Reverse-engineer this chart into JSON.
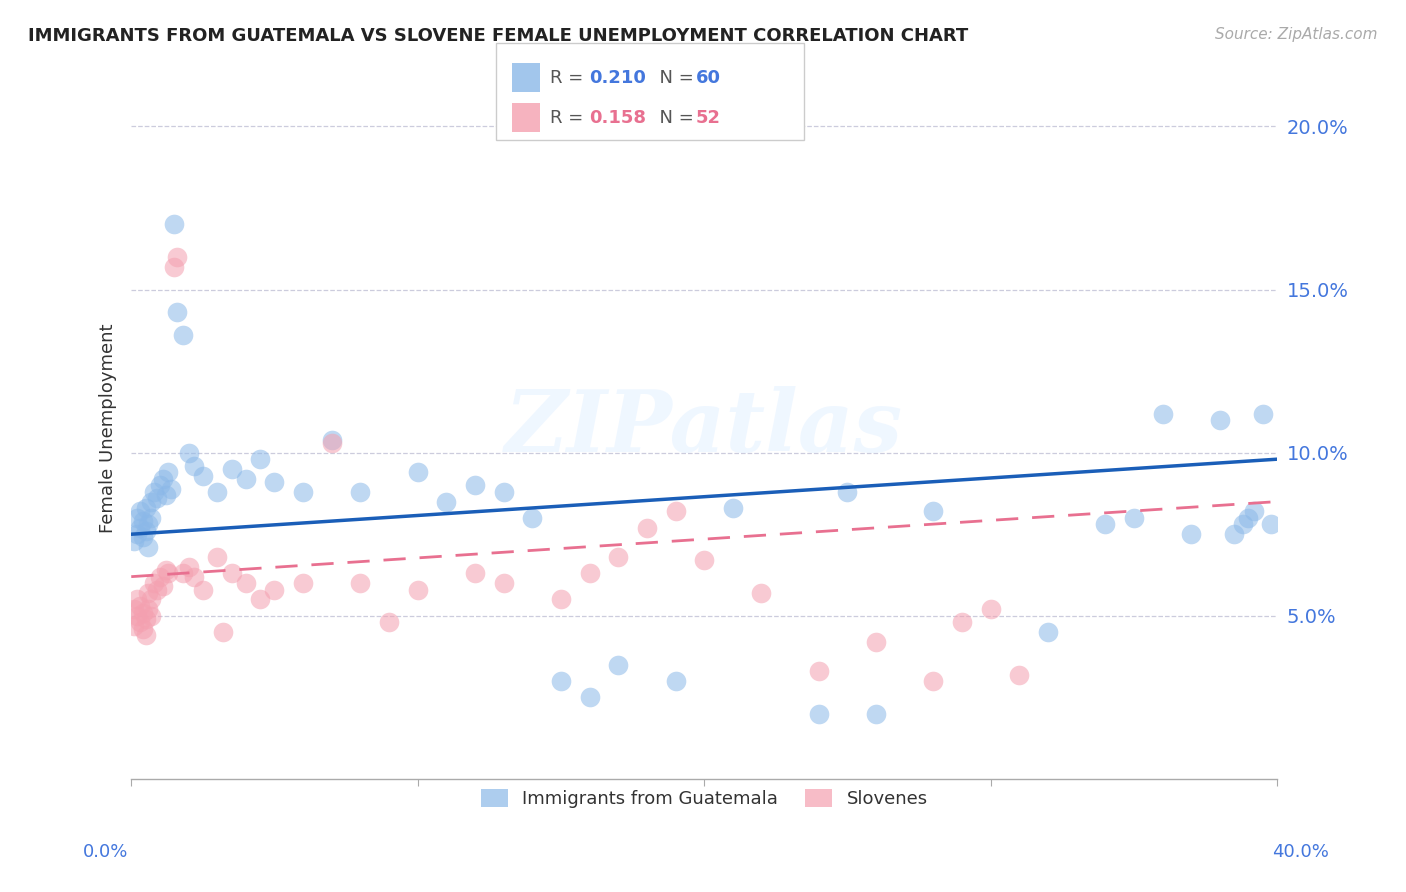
{
  "title": "IMMIGRANTS FROM GUATEMALA VS SLOVENE FEMALE UNEMPLOYMENT CORRELATION CHART",
  "source": "Source: ZipAtlas.com",
  "ylabel": "Female Unemployment",
  "y_ticks": [
    0.0,
    0.05,
    0.1,
    0.15,
    0.2
  ],
  "y_tick_labels": [
    "",
    "5.0%",
    "10.0%",
    "15.0%",
    "20.0%"
  ],
  "x_range": [
    0.0,
    0.4
  ],
  "y_range": [
    0.0,
    0.215
  ],
  "legend_r1": "0.210",
  "legend_n1": "60",
  "legend_r2": "0.158",
  "legend_n2": "52",
  "blue_color": "#8BB8E8",
  "pink_color": "#F4A0B0",
  "line_blue": "#1A5EB8",
  "line_pink": "#E87090",
  "axis_color": "#4477DD",
  "grid_color": "#CCCCDD",
  "watermark": "ZIPatlas",
  "guatemala_x": [
    0.001,
    0.002,
    0.002,
    0.003,
    0.003,
    0.004,
    0.004,
    0.005,
    0.005,
    0.006,
    0.006,
    0.007,
    0.007,
    0.008,
    0.009,
    0.01,
    0.011,
    0.012,
    0.013,
    0.014,
    0.015,
    0.016,
    0.018,
    0.02,
    0.022,
    0.025,
    0.03,
    0.035,
    0.04,
    0.045,
    0.05,
    0.06,
    0.07,
    0.08,
    0.1,
    0.11,
    0.12,
    0.13,
    0.14,
    0.15,
    0.16,
    0.17,
    0.19,
    0.21,
    0.24,
    0.25,
    0.26,
    0.28,
    0.32,
    0.34,
    0.35,
    0.36,
    0.37,
    0.38,
    0.385,
    0.388,
    0.39,
    0.392,
    0.395,
    0.398
  ],
  "guatemala_y": [
    0.073,
    0.075,
    0.08,
    0.077,
    0.082,
    0.074,
    0.079,
    0.076,
    0.083,
    0.071,
    0.078,
    0.085,
    0.08,
    0.088,
    0.086,
    0.09,
    0.092,
    0.087,
    0.094,
    0.089,
    0.17,
    0.143,
    0.136,
    0.1,
    0.096,
    0.093,
    0.088,
    0.095,
    0.092,
    0.098,
    0.091,
    0.088,
    0.104,
    0.088,
    0.094,
    0.085,
    0.09,
    0.088,
    0.08,
    0.03,
    0.025,
    0.035,
    0.03,
    0.083,
    0.02,
    0.088,
    0.02,
    0.082,
    0.045,
    0.078,
    0.08,
    0.112,
    0.075,
    0.11,
    0.075,
    0.078,
    0.08,
    0.082,
    0.112,
    0.078
  ],
  "slovene_x": [
    0.001,
    0.001,
    0.002,
    0.002,
    0.003,
    0.003,
    0.004,
    0.004,
    0.005,
    0.005,
    0.006,
    0.006,
    0.007,
    0.007,
    0.008,
    0.009,
    0.01,
    0.011,
    0.012,
    0.013,
    0.015,
    0.016,
    0.018,
    0.02,
    0.022,
    0.025,
    0.03,
    0.032,
    0.035,
    0.04,
    0.045,
    0.05,
    0.06,
    0.07,
    0.08,
    0.09,
    0.1,
    0.12,
    0.13,
    0.15,
    0.16,
    0.17,
    0.18,
    0.19,
    0.2,
    0.22,
    0.24,
    0.26,
    0.28,
    0.29,
    0.3,
    0.31
  ],
  "slovene_y": [
    0.047,
    0.052,
    0.05,
    0.055,
    0.048,
    0.053,
    0.046,
    0.051,
    0.049,
    0.044,
    0.057,
    0.052,
    0.05,
    0.055,
    0.06,
    0.058,
    0.062,
    0.059,
    0.064,
    0.063,
    0.157,
    0.16,
    0.063,
    0.065,
    0.062,
    0.058,
    0.068,
    0.045,
    0.063,
    0.06,
    0.055,
    0.058,
    0.06,
    0.103,
    0.06,
    0.048,
    0.058,
    0.063,
    0.06,
    0.055,
    0.063,
    0.068,
    0.077,
    0.082,
    0.067,
    0.057,
    0.033,
    0.042,
    0.03,
    0.048,
    0.052,
    0.032
  ]
}
